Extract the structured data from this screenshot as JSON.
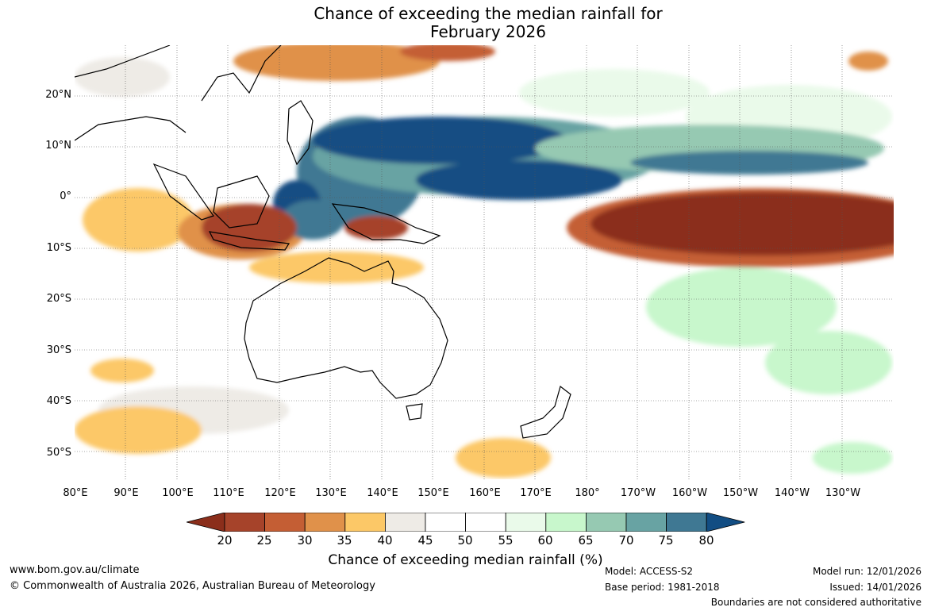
{
  "title_line1": "Chance of exceeding the median rainfall for",
  "title_line2": "February 2026",
  "lat_labels": [
    "20°N",
    "10°N",
    "0°",
    "10°S",
    "20°S",
    "30°S",
    "40°S",
    "50°S"
  ],
  "lon_labels": [
    "80°E",
    "90°E",
    "100°E",
    "110°E",
    "120°E",
    "130°E",
    "140°E",
    "150°E",
    "160°E",
    "170°E",
    "180°",
    "170°W",
    "160°W",
    "150°W",
    "140°W",
    "130°W"
  ],
  "colorbar": {
    "ticks": [
      "20",
      "25",
      "30",
      "35",
      "40",
      "45",
      "50",
      "55",
      "60",
      "65",
      "70",
      "75",
      "80"
    ],
    "colors": [
      "#8b2e1b",
      "#a6432a",
      "#c45e34",
      "#e0914a",
      "#fcc867",
      "#eeebe6",
      "#ffffff",
      "#ffffff",
      "#eafaea",
      "#c8f7cc",
      "#96c9b2",
      "#68a3a3",
      "#3f7893",
      "#124d83"
    ],
    "label": "Chance of exceeding median rainfall (%)"
  },
  "footer": {
    "website": "www.bom.gov.au/climate",
    "copyright": "© Commonwealth of Australia 2026, Australian Bureau of Meteorology",
    "model": "Model: ACCESS-S2",
    "base_period": "Base period: 1981-2018",
    "model_run": "Model run: 12/01/2026",
    "issued": "Issued: 14/01/2026",
    "disclaimer": "Boundaries are not considered authoritative"
  }
}
